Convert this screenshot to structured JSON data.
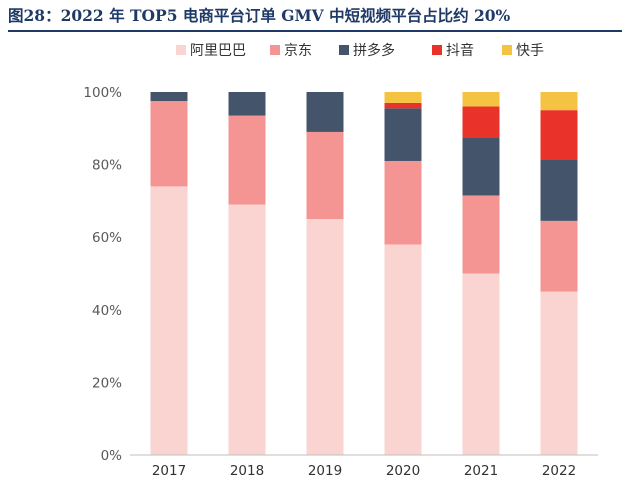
{
  "title": "图28：2022 年 TOP5 电商平台订单 GMV 中短视频平台占比约 20%",
  "chart_data": {
    "type": "bar",
    "stacked": true,
    "title": "图28：2022 年 TOP5 电商平台订单 GMV 中短视频平台占比约 20%",
    "categories": [
      "2017",
      "2018",
      "2019",
      "2020",
      "2021",
      "2022"
    ],
    "series": [
      {
        "name": "阿里巴巴",
        "color": "#fad4d0",
        "values": [
          74,
          69,
          65,
          58,
          50,
          45
        ]
      },
      {
        "name": "京东",
        "color": "#f59593",
        "values": [
          23.5,
          24.5,
          24,
          23,
          21.5,
          19.5
        ]
      },
      {
        "name": "拼多多",
        "color": "#44546a",
        "values": [
          2.5,
          6.5,
          11,
          14.5,
          16,
          17
        ]
      },
      {
        "name": "抖音",
        "color": "#e8322a",
        "values": [
          0,
          0,
          0,
          1.5,
          8.5,
          13.5
        ]
      },
      {
        "name": "快手",
        "color": "#f5c342",
        "values": [
          0,
          0,
          0,
          3,
          4,
          5
        ]
      }
    ],
    "ylim": [
      0,
      100
    ],
    "yticks": [
      "0%",
      "20%",
      "40%",
      "60%",
      "80%",
      "100%"
    ],
    "grid": false,
    "legend_position": "top"
  }
}
